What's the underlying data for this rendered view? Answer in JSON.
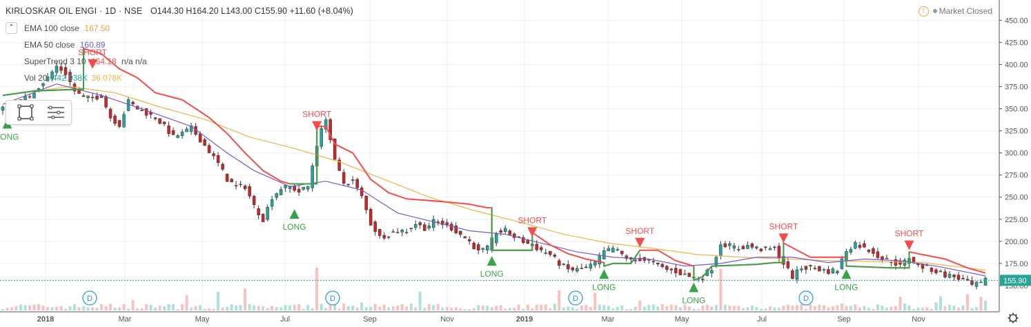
{
  "header": {
    "symbol": "KIRLOSKAR OIL ENGI · 1D · NSE",
    "open": "O144.30",
    "high": "H164.20",
    "low": "L143.00",
    "close": "C155.90",
    "change": "+11.60 (+8.04%)",
    "market_status": "Market Closed"
  },
  "legend": {
    "collapse_icon": "chevron-up-icon",
    "ema100_label": "EMA 100 close",
    "ema100_value": "167.50",
    "ema50_label": "EMA 50 close",
    "ema50_value": "160.89",
    "supertrend_label": "SuperTrend 3 10",
    "supertrend_value": "164.18",
    "supertrend_na": "n/a  n/a",
    "vol_label": "Vol 20",
    "vol_value": "442.938K",
    "vol_ma_value": "36.078K"
  },
  "toolbox": {
    "icons": [
      "rectangle-select-icon",
      "list-settings-icon"
    ]
  },
  "colors": {
    "ema100": "#f0b445",
    "ema50": "#7e57c2",
    "supertrend_up": "#3aa34a",
    "supertrend_down": "#f44b4b",
    "candle_up": "#26a69a",
    "candle_down": "#c62828",
    "volume": "#9ad9d2",
    "price_tag": "#26a69a"
  },
  "chart_data": {
    "type": "candlestick",
    "title": "KIRLOSKAR OIL ENGI · 1D · NSE",
    "y_axis_ticks": [
      "450.00",
      "425.00",
      "400.00",
      "375.00",
      "350.00",
      "325.00",
      "300.00",
      "275.00",
      "250.00",
      "225.00",
      "200.00",
      "175.00",
      "150.00"
    ],
    "ylim": [
      132,
      462
    ],
    "x_axis_ticks": [
      "2018",
      "Mar",
      "May",
      "Jul",
      "Sep",
      "Nov",
      "2019",
      "Mar",
      "May",
      "Jul",
      "Sep",
      "Nov"
    ],
    "last_price": "155.90",
    "price_path": [
      [
        0,
        350
      ],
      [
        3,
        355
      ],
      [
        6,
        365
      ],
      [
        8,
        375
      ],
      [
        10,
        385
      ],
      [
        12,
        398
      ],
      [
        14,
        390
      ],
      [
        16,
        370
      ],
      [
        18,
        362
      ],
      [
        20,
        362
      ],
      [
        22,
        365
      ],
      [
        24,
        340
      ],
      [
        26,
        332
      ],
      [
        28,
        358
      ],
      [
        30,
        350
      ],
      [
        32,
        345
      ],
      [
        34,
        340
      ],
      [
        36,
        330
      ],
      [
        38,
        318
      ],
      [
        40,
        322
      ],
      [
        42,
        328
      ],
      [
        44,
        315
      ],
      [
        46,
        302
      ],
      [
        48,
        288
      ],
      [
        50,
        270
      ],
      [
        52,
        262
      ],
      [
        54,
        262
      ],
      [
        56,
        240
      ],
      [
        58,
        225
      ],
      [
        60,
        250
      ],
      [
        62,
        260
      ],
      [
        64,
        262
      ],
      [
        66,
        256
      ],
      [
        68,
        262
      ],
      [
        70,
        310
      ],
      [
        72,
        340
      ],
      [
        74,
        290
      ],
      [
        76,
        266
      ],
      [
        78,
        268
      ],
      [
        80,
        250
      ],
      [
        82,
        220
      ],
      [
        84,
        205
      ],
      [
        86,
        208
      ],
      [
        88,
        212
      ],
      [
        90,
        212
      ],
      [
        92,
        220
      ],
      [
        94,
        215
      ],
      [
        96,
        222
      ],
      [
        98,
        220
      ],
      [
        100,
        215
      ],
      [
        102,
        208
      ],
      [
        104,
        200
      ],
      [
        106,
        188
      ],
      [
        108,
        192
      ],
      [
        110,
        210
      ],
      [
        112,
        212
      ],
      [
        114,
        205
      ],
      [
        116,
        200
      ],
      [
        118,
        195
      ],
      [
        120,
        190
      ],
      [
        122,
        185
      ],
      [
        124,
        175
      ],
      [
        126,
        168
      ],
      [
        128,
        168
      ],
      [
        130,
        170
      ],
      [
        132,
        175
      ],
      [
        134,
        188
      ],
      [
        136,
        192
      ],
      [
        138,
        185
      ],
      [
        140,
        178
      ],
      [
        142,
        180
      ],
      [
        144,
        178
      ],
      [
        146,
        172
      ],
      [
        148,
        168
      ],
      [
        150,
        166
      ],
      [
        152,
        162
      ],
      [
        154,
        158
      ],
      [
        156,
        160
      ],
      [
        158,
        170
      ],
      [
        160,
        198
      ],
      [
        162,
        195
      ],
      [
        164,
        192
      ],
      [
        166,
        195
      ],
      [
        168,
        192
      ],
      [
        170,
        190
      ],
      [
        172,
        192
      ],
      [
        174,
        175
      ],
      [
        176,
        160
      ],
      [
        178,
        170
      ],
      [
        180,
        170
      ],
      [
        182,
        168
      ],
      [
        184,
        166
      ],
      [
        186,
        168
      ],
      [
        188,
        190
      ],
      [
        190,
        198
      ],
      [
        192,
        192
      ],
      [
        194,
        188
      ],
      [
        196,
        180
      ],
      [
        198,
        178
      ],
      [
        200,
        172
      ],
      [
        202,
        182
      ],
      [
        204,
        172
      ],
      [
        206,
        170
      ],
      [
        208,
        166
      ],
      [
        210,
        162
      ],
      [
        212,
        160
      ],
      [
        214,
        156
      ],
      [
        216,
        150
      ],
      [
        218,
        152
      ],
      [
        219,
        155.9
      ]
    ],
    "series": [
      {
        "name": "EMA 100 close",
        "values": [
          [
            0,
            365
          ],
          [
            15,
            375
          ],
          [
            25,
            368
          ],
          [
            35,
            352
          ],
          [
            45,
            338
          ],
          [
            55,
            318
          ],
          [
            65,
            305
          ],
          [
            75,
            290
          ],
          [
            85,
            270
          ],
          [
            95,
            250
          ],
          [
            105,
            235
          ],
          [
            115,
            222
          ],
          [
            125,
            208
          ],
          [
            135,
            198
          ],
          [
            145,
            192
          ],
          [
            155,
            185
          ],
          [
            165,
            182
          ],
          [
            175,
            180
          ],
          [
            185,
            178
          ],
          [
            195,
            177
          ],
          [
            205,
            176
          ],
          [
            215,
            170
          ],
          [
            219,
            167.5
          ]
        ]
      },
      {
        "name": "EMA 50 close",
        "values": [
          [
            0,
            355
          ],
          [
            12,
            378
          ],
          [
            22,
            365
          ],
          [
            32,
            348
          ],
          [
            42,
            330
          ],
          [
            50,
            300
          ],
          [
            56,
            280
          ],
          [
            64,
            262
          ],
          [
            72,
            268
          ],
          [
            80,
            258
          ],
          [
            88,
            232
          ],
          [
            96,
            222
          ],
          [
            104,
            212
          ],
          [
            112,
            208
          ],
          [
            120,
            198
          ],
          [
            128,
            188
          ],
          [
            136,
            182
          ],
          [
            144,
            180
          ],
          [
            152,
            172
          ],
          [
            160,
            175
          ],
          [
            168,
            182
          ],
          [
            176,
            182
          ],
          [
            184,
            176
          ],
          [
            192,
            180
          ],
          [
            200,
            178
          ],
          [
            208,
            172
          ],
          [
            215,
            165
          ],
          [
            219,
            160.89
          ]
        ]
      },
      {
        "name": "SuperTrend 3 10",
        "values": [
          [
            0,
            365
          ],
          [
            7,
            370
          ],
          [
            17,
            372
          ],
          [
            18,
            372
          ],
          [
            18,
            418
          ],
          [
            22,
            412
          ],
          [
            26,
            395
          ],
          [
            30,
            385
          ],
          [
            34,
            368
          ],
          [
            40,
            360
          ],
          [
            46,
            340
          ],
          [
            50,
            322
          ],
          [
            54,
            300
          ],
          [
            58,
            280
          ],
          [
            62,
            268
          ],
          [
            64,
            265
          ],
          [
            68,
            265
          ],
          [
            70,
            265
          ],
          [
            70,
            330
          ],
          [
            72,
            330
          ],
          [
            74,
            310
          ],
          [
            78,
            300
          ],
          [
            82,
            270
          ],
          [
            86,
            255
          ],
          [
            90,
            248
          ],
          [
            98,
            245
          ],
          [
            104,
            242
          ],
          [
            108,
            238
          ],
          [
            109,
            238
          ],
          [
            109,
            190
          ],
          [
            116,
            190
          ],
          [
            118,
            190
          ],
          [
            118,
            210
          ],
          [
            122,
            196
          ],
          [
            126,
            186
          ],
          [
            130,
            180
          ],
          [
            134,
            176
          ],
          [
            134,
            172
          ],
          [
            136,
            175
          ],
          [
            140,
            175
          ],
          [
            142,
            190
          ],
          [
            146,
            190
          ],
          [
            150,
            178
          ],
          [
            154,
            172
          ],
          [
            154,
            156
          ],
          [
            156,
            160
          ],
          [
            158,
            172
          ],
          [
            168,
            174
          ],
          [
            172,
            176
          ],
          [
            174,
            176
          ],
          [
            174,
            198
          ],
          [
            180,
            182
          ],
          [
            186,
            182
          ],
          [
            188,
            182
          ],
          [
            188,
            172
          ],
          [
            198,
            170
          ],
          [
            202,
            170
          ],
          [
            202,
            188
          ],
          [
            210,
            180
          ],
          [
            215,
            170
          ],
          [
            219,
            164.18
          ]
        ]
      }
    ],
    "signals": [
      {
        "label": "LONG",
        "x": 1,
        "price": 340
      },
      {
        "label": "SHORT",
        "x": 20,
        "price": 395
      },
      {
        "label": "LONG",
        "x": 65,
        "price": 238
      },
      {
        "label": "SHORT",
        "x": 70,
        "price": 325
      },
      {
        "label": "LONG",
        "x": 109,
        "price": 185
      },
      {
        "label": "SHORT",
        "x": 118,
        "price": 205
      },
      {
        "label": "LONG",
        "x": 134,
        "price": 170
      },
      {
        "label": "SHORT",
        "x": 142,
        "price": 193
      },
      {
        "label": "LONG",
        "x": 154,
        "price": 155
      },
      {
        "label": "SHORT",
        "x": 174,
        "price": 198
      },
      {
        "label": "LONG",
        "x": 188,
        "price": 170
      },
      {
        "label": "SHORT",
        "x": 202,
        "price": 190
      }
    ],
    "dividend_markers": [
      "D",
      "D",
      "D",
      "D"
    ],
    "grid": true,
    "legend_position": "top-left"
  }
}
